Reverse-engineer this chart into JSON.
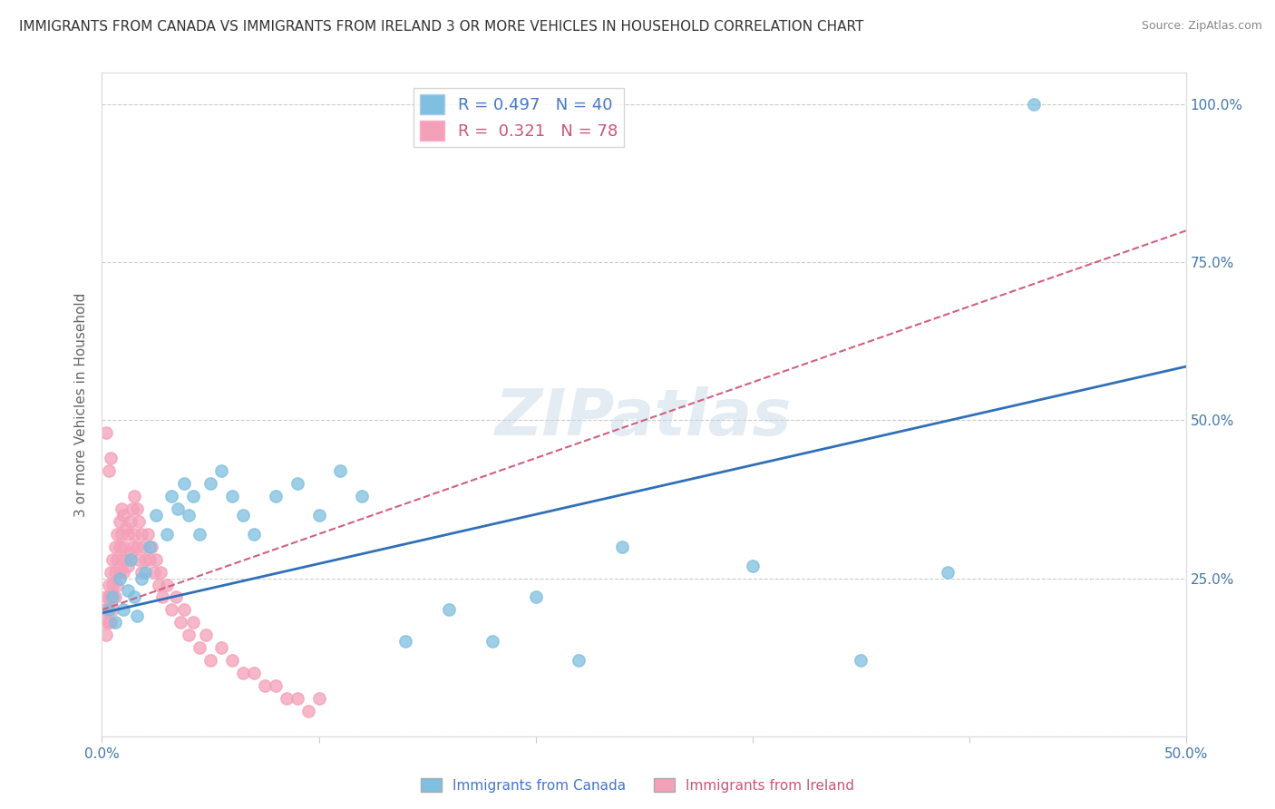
{
  "title": "IMMIGRANTS FROM CANADA VS IMMIGRANTS FROM IRELAND 3 OR MORE VEHICLES IN HOUSEHOLD CORRELATION CHART",
  "source": "Source: ZipAtlas.com",
  "ylabel": "3 or more Vehicles in Household",
  "watermark": "ZIPatlas",
  "xlim": [
    0.0,
    0.5
  ],
  "ylim": [
    0.0,
    1.05
  ],
  "canada_R": 0.497,
  "canada_N": 40,
  "ireland_R": 0.321,
  "ireland_N": 78,
  "canada_color": "#7fbfdf",
  "ireland_color": "#f4a0b8",
  "canada_trend_color": "#3070b8",
  "ireland_trend_color": "#d06080",
  "legend_label_canada": "Immigrants from Canada",
  "legend_label_ireland": "Immigrants from Ireland",
  "canada_x": [
    0.003,
    0.005,
    0.006,
    0.008,
    0.01,
    0.012,
    0.013,
    0.015,
    0.016,
    0.018,
    0.02,
    0.022,
    0.025,
    0.03,
    0.032,
    0.035,
    0.038,
    0.04,
    0.042,
    0.045,
    0.05,
    0.055,
    0.06,
    0.065,
    0.07,
    0.08,
    0.09,
    0.1,
    0.11,
    0.12,
    0.14,
    0.16,
    0.18,
    0.2,
    0.22,
    0.24,
    0.3,
    0.35,
    0.39,
    0.43
  ],
  "canada_y": [
    0.2,
    0.22,
    0.18,
    0.25,
    0.2,
    0.23,
    0.28,
    0.22,
    0.19,
    0.25,
    0.26,
    0.3,
    0.35,
    0.32,
    0.38,
    0.36,
    0.4,
    0.35,
    0.38,
    0.32,
    0.4,
    0.42,
    0.38,
    0.35,
    0.32,
    0.38,
    0.4,
    0.35,
    0.42,
    0.38,
    0.15,
    0.2,
    0.15,
    0.22,
    0.12,
    0.3,
    0.27,
    0.12,
    0.26,
    1.0
  ],
  "ireland_x": [
    0.001,
    0.001,
    0.002,
    0.002,
    0.002,
    0.003,
    0.003,
    0.003,
    0.004,
    0.004,
    0.004,
    0.005,
    0.005,
    0.005,
    0.006,
    0.006,
    0.006,
    0.007,
    0.007,
    0.007,
    0.008,
    0.008,
    0.008,
    0.009,
    0.009,
    0.009,
    0.01,
    0.01,
    0.01,
    0.011,
    0.011,
    0.012,
    0.012,
    0.013,
    0.013,
    0.014,
    0.014,
    0.015,
    0.015,
    0.016,
    0.016,
    0.017,
    0.017,
    0.018,
    0.018,
    0.019,
    0.02,
    0.021,
    0.022,
    0.023,
    0.024,
    0.025,
    0.026,
    0.027,
    0.028,
    0.03,
    0.032,
    0.034,
    0.036,
    0.038,
    0.04,
    0.042,
    0.045,
    0.048,
    0.05,
    0.055,
    0.06,
    0.065,
    0.07,
    0.075,
    0.08,
    0.085,
    0.09,
    0.095,
    0.1,
    0.002,
    0.003,
    0.004
  ],
  "ireland_y": [
    0.2,
    0.18,
    0.22,
    0.2,
    0.16,
    0.24,
    0.22,
    0.18,
    0.26,
    0.22,
    0.18,
    0.28,
    0.24,
    0.2,
    0.3,
    0.26,
    0.22,
    0.32,
    0.28,
    0.24,
    0.34,
    0.3,
    0.26,
    0.36,
    0.32,
    0.28,
    0.35,
    0.3,
    0.26,
    0.33,
    0.28,
    0.32,
    0.27,
    0.34,
    0.29,
    0.36,
    0.3,
    0.38,
    0.32,
    0.36,
    0.3,
    0.34,
    0.28,
    0.32,
    0.26,
    0.3,
    0.28,
    0.32,
    0.28,
    0.3,
    0.26,
    0.28,
    0.24,
    0.26,
    0.22,
    0.24,
    0.2,
    0.22,
    0.18,
    0.2,
    0.16,
    0.18,
    0.14,
    0.16,
    0.12,
    0.14,
    0.12,
    0.1,
    0.1,
    0.08,
    0.08,
    0.06,
    0.06,
    0.04,
    0.06,
    0.48,
    0.42,
    0.44
  ],
  "canada_trend_x0": 0.0,
  "canada_trend_y0": 0.195,
  "canada_trend_x1": 0.5,
  "canada_trend_y1": 0.585,
  "ireland_trend_x0": 0.0,
  "ireland_trend_y0": 0.2,
  "ireland_trend_x1": 0.5,
  "ireland_trend_y1": 0.8,
  "background_color": "#ffffff",
  "grid_color": "#cccccc",
  "title_fontsize": 11,
  "axis_label_fontsize": 11,
  "tick_fontsize": 11,
  "legend_fontsize": 13,
  "watermark_fontsize": 52,
  "watermark_color": "#c8d8e8",
  "watermark_alpha": 0.5
}
